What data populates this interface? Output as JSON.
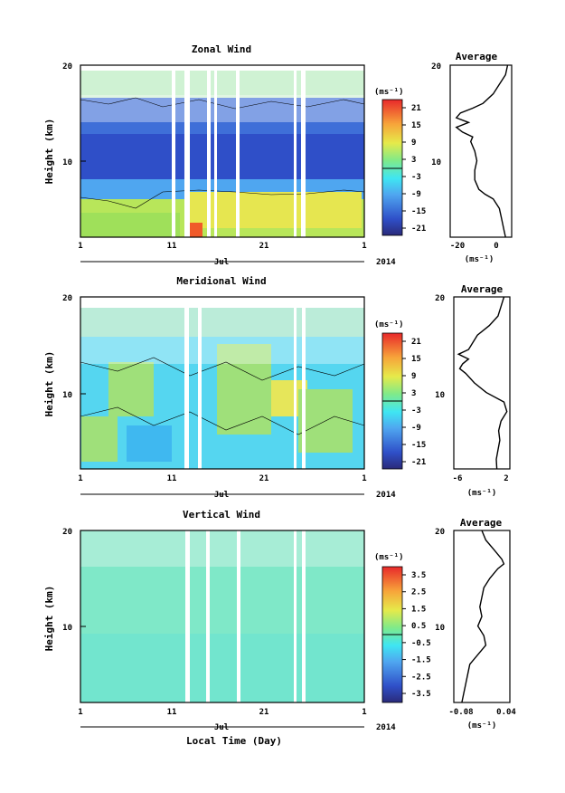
{
  "chart_data": [
    {
      "type": "heatmap",
      "title": "Zonal Wind",
      "ylabel": "Height (km)",
      "ylim": [
        2,
        20
      ],
      "yticks": [
        "20",
        "10"
      ],
      "xticks": [
        "1",
        "11",
        "21",
        "1"
      ],
      "month_label": "Jul",
      "year_label": "2014",
      "colorbar": {
        "unit": "(ms⁻¹)",
        "ticks": [
          "21",
          "15",
          "9",
          "3",
          "-3",
          "-9",
          "-15",
          "-21"
        ],
        "vmin": -24,
        "vmax": 24
      },
      "pattern": "winds strongly negative (blue) between ~7 and ~15 km, positive (green/yellow) below ~6 km, mixed above ~16 km",
      "gaps_day": [
        [
          9.6,
          10.0
        ],
        [
          10.9,
          11.4
        ],
        [
          13.5,
          13.8
        ],
        [
          14.3,
          14.6
        ],
        [
          17.5,
          17.8
        ],
        [
          24.4,
          24.6
        ],
        [
          25.3,
          25.7
        ]
      ],
      "profile": {
        "title": "Average",
        "xlabel": "(ms⁻¹)",
        "xticks": [
          "-20",
          "0"
        ],
        "xlim": [
          -24,
          6
        ],
        "yticks": [
          "20",
          "10"
        ],
        "height": [
          2,
          3,
          4,
          5,
          6,
          6.5,
          7,
          8,
          9,
          10,
          11,
          12,
          12.5,
          13,
          13.5,
          14,
          14.5,
          15,
          15.5,
          16,
          17,
          18,
          19,
          20
        ],
        "values": [
          3,
          2,
          1,
          0,
          -3,
          -7,
          -10,
          -12,
          -12,
          -11,
          -12,
          -14,
          -13,
          -18,
          -21,
          -15,
          -21,
          -19,
          -13,
          -8,
          -3,
          0,
          3,
          4
        ]
      }
    },
    {
      "type": "heatmap",
      "title": "Meridional Wind",
      "ylabel": "Height (km)",
      "ylim": [
        2,
        20
      ],
      "yticks": [
        "20",
        "10"
      ],
      "xticks": [
        "1",
        "11",
        "21",
        "1"
      ],
      "month_label": "Jul",
      "year_label": "2014",
      "colorbar": {
        "unit": "(ms⁻¹)",
        "ticks": [
          "21",
          "15",
          "9",
          "3",
          "-3",
          "-9",
          "-15",
          "-21"
        ],
        "vmin": -24,
        "vmax": 24
      },
      "pattern": "mostly weak winds (cyan/light blue) with scattered weak positive (green/yellow) patches, noisy above ~16 km",
      "gaps_day": [
        [
          12.9,
          13.1
        ],
        [
          14.3,
          14.5
        ],
        [
          24.4,
          24.6
        ],
        [
          25.3,
          25.6
        ]
      ],
      "profile": {
        "title": "Average",
        "xlabel": "(ms⁻¹)",
        "xticks": [
          "-6",
          "2"
        ],
        "xlim": [
          -7,
          2.5
        ],
        "yticks": [
          "20",
          "10"
        ],
        "height": [
          2,
          3,
          4,
          5,
          6,
          7,
          8,
          9,
          10,
          11,
          12,
          12.5,
          13,
          13.5,
          14,
          14.5,
          15,
          16,
          17,
          18,
          19,
          20
        ],
        "values": [
          0.3,
          0.2,
          0.5,
          0.8,
          0.6,
          1.0,
          2.0,
          1.5,
          -1.5,
          -3.5,
          -5.0,
          -6.0,
          -5.5,
          -4.5,
          -6.2,
          -4.5,
          -4.0,
          -3.0,
          -1.0,
          0.5,
          1.0,
          1.5
        ]
      }
    },
    {
      "type": "heatmap",
      "title": "Vertical Wind",
      "xlabel": "Local Time (Day)",
      "ylabel": "Height (km)",
      "ylim": [
        2,
        20
      ],
      "yticks": [
        "20",
        "10"
      ],
      "xticks": [
        "1",
        "11",
        "21",
        "1"
      ],
      "month_label": "Jul",
      "year_label": "2014",
      "colorbar": {
        "unit": "(ms⁻¹)",
        "ticks": [
          "3.5",
          "2.5",
          "1.5",
          "0.5",
          "-0.5",
          "-1.5",
          "-2.5",
          "-3.5"
        ],
        "vmin": -4,
        "vmax": 4
      },
      "pattern": "near-zero vertical winds (light green/cyan) throughout",
      "gaps_day": [
        [
          12.9,
          13.1
        ],
        [
          14.3,
          14.6
        ],
        [
          18.0,
          18.2
        ],
        [
          24.6,
          24.8
        ],
        [
          25.3,
          25.6
        ]
      ],
      "profile": {
        "title": "Average",
        "xlabel": "(ms⁻¹)",
        "xticks": [
          "-0.08",
          "0.04"
        ],
        "xlim": [
          -0.09,
          0.05
        ],
        "yticks": [
          "20",
          "10"
        ],
        "height": [
          2,
          3,
          4,
          5,
          6,
          7,
          8,
          9,
          10,
          11,
          12,
          13,
          14,
          15,
          16,
          16.5,
          17,
          18,
          19,
          20
        ],
        "values": [
          -0.07,
          -0.065,
          -0.06,
          -0.055,
          -0.05,
          -0.03,
          -0.01,
          -0.015,
          -0.03,
          -0.02,
          -0.025,
          -0.02,
          -0.015,
          0.0,
          0.02,
          0.035,
          0.03,
          0.01,
          -0.01,
          -0.02
        ]
      }
    }
  ]
}
